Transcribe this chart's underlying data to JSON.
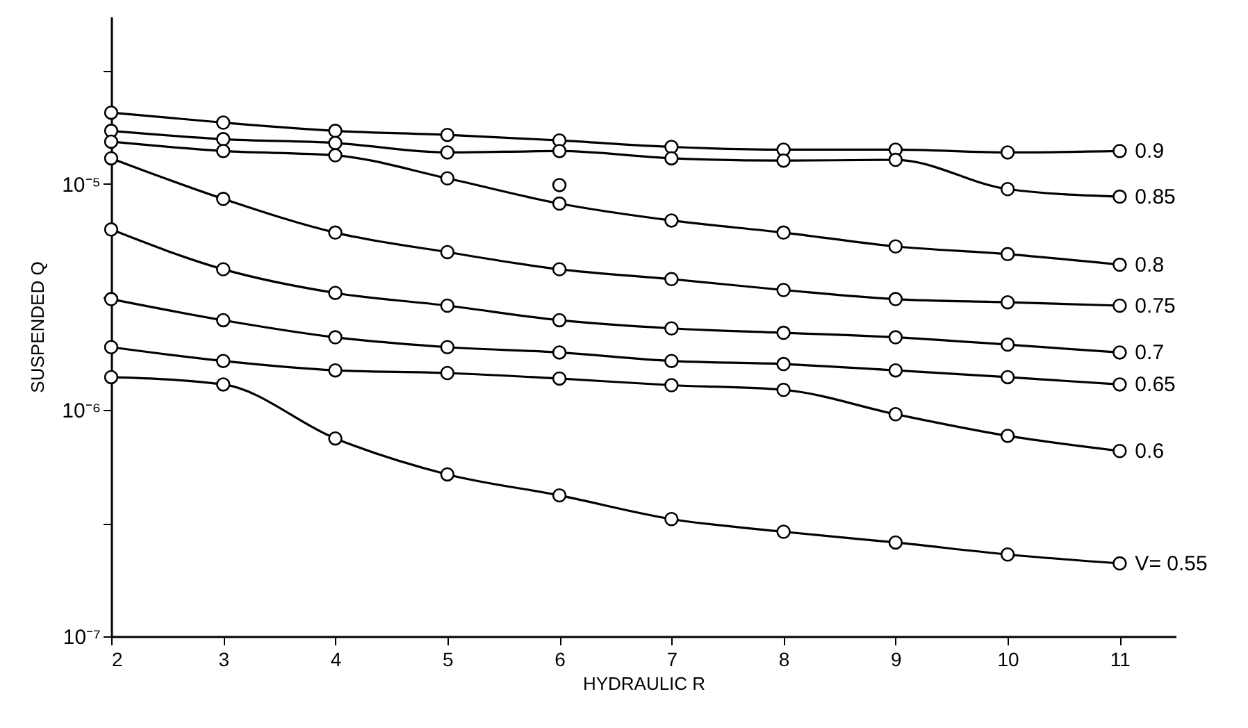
{
  "chart_data": {
    "type": "line",
    "xlabel": "HYDRAULIC R",
    "ylabel": "SUSPENDED Q",
    "log": "y",
    "grid": false,
    "marker": "circle",
    "line_style": "solid",
    "x": [
      2,
      3,
      4,
      5,
      6,
      7,
      8,
      9,
      10,
      11
    ],
    "xlim": [
      2,
      11.5
    ],
    "xticks": [
      2,
      3,
      4,
      5,
      6,
      7,
      8,
      9,
      10,
      11
    ],
    "ylim": [
      1e-07,
      5.5e-05
    ],
    "yticks": [
      {
        "value": 1e-07,
        "label": "10⁻⁷"
      },
      {
        "value": 3.16e-07,
        "label": null
      },
      {
        "value": 1e-06,
        "label": "10⁻⁶"
      },
      {
        "value": 3.16e-06,
        "label": null
      },
      {
        "value": 1e-05,
        "label": "10⁻⁵"
      },
      {
        "value": 3.16e-05,
        "label": null
      }
    ],
    "series": [
      {
        "name": "0.9",
        "color": "#000000",
        "values": [
          2.07e-05,
          1.87e-05,
          1.72e-05,
          1.65e-05,
          1.56e-05,
          1.46e-05,
          1.42e-05,
          1.42e-05,
          1.38e-05,
          1.4e-05
        ]
      },
      {
        "name": "0.85",
        "color": "#000000",
        "values": [
          1.72e-05,
          1.58e-05,
          1.52e-05,
          1.38e-05,
          1.4e-05,
          1.3e-05,
          1.27e-05,
          1.28e-05,
          9.5e-06,
          8.8e-06
        ]
      },
      {
        "name": "0.8",
        "color": "#000000",
        "values": [
          1.54e-05,
          1.4e-05,
          1.34e-05,
          1.06e-05,
          8.2e-06,
          6.9e-06,
          6.1e-06,
          5.3e-06,
          4.9e-06,
          4.4e-06
        ]
      },
      {
        "name": "0.75",
        "color": "#000000",
        "values": [
          1.3e-05,
          8.6e-06,
          6.1e-06,
          5e-06,
          4.2e-06,
          3.8e-06,
          3.4e-06,
          3.1e-06,
          3e-06,
          2.9e-06
        ]
      },
      {
        "name": "0.7",
        "color": "#000000",
        "values": [
          6.3e-06,
          4.2e-06,
          3.3e-06,
          2.9e-06,
          2.5e-06,
          2.3e-06,
          2.2e-06,
          2.1e-06,
          1.95e-06,
          1.8e-06
        ]
      },
      {
        "name": "0.65",
        "color": "#000000",
        "values": [
          3.1e-06,
          2.5e-06,
          2.1e-06,
          1.9e-06,
          1.8e-06,
          1.65e-06,
          1.6e-06,
          1.5e-06,
          1.4e-06,
          1.3e-06
        ]
      },
      {
        "name": "0.6",
        "color": "#000000",
        "values": [
          1.9e-06,
          1.65e-06,
          1.5e-06,
          1.46e-06,
          1.38e-06,
          1.29e-06,
          1.23e-06,
          9.6e-07,
          7.7e-07,
          6.6e-07
        ]
      },
      {
        "name": "V= 0.55",
        "color": "#000000",
        "values": [
          1.4e-06,
          1.3e-06,
          7.5e-07,
          5.2e-07,
          4.2e-07,
          3.3e-07,
          2.9e-07,
          2.6e-07,
          2.3e-07,
          2.1e-07
        ]
      },
      {
        "type": "scatter",
        "color": "#000000",
        "values": [
          null,
          null,
          null,
          null,
          9.9e-06,
          null,
          null,
          null,
          null,
          null
        ]
      }
    ]
  }
}
